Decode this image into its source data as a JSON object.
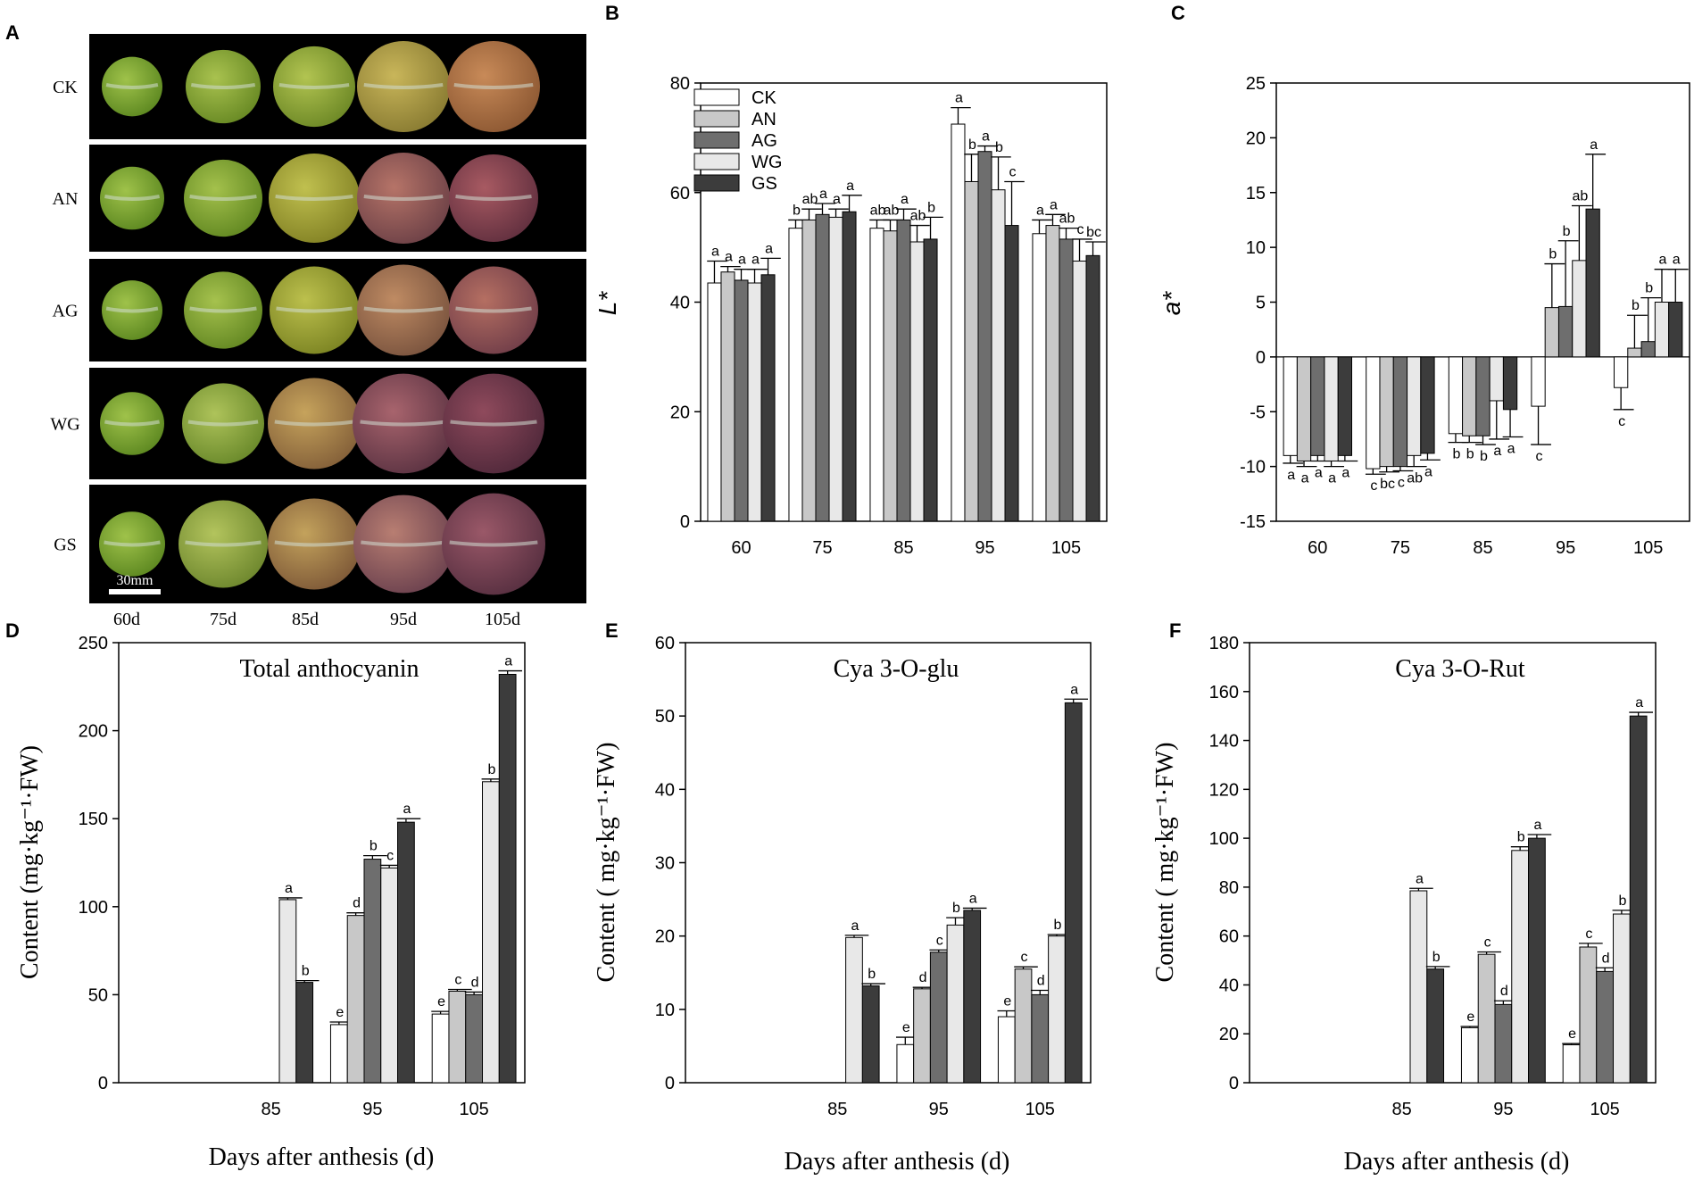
{
  "photo_panel": {
    "letter": "A",
    "row_labels": [
      "CK",
      "AN",
      "AG",
      "WG",
      "GS"
    ],
    "col_labels": [
      "60d",
      "75d",
      "85d",
      "95d",
      "105d"
    ],
    "scale_label": "30mm"
  },
  "chart_data": [
    {
      "id": "B",
      "type": "bar",
      "title": "",
      "xlabel": "",
      "ylabel": "L*",
      "ylim": [
        0,
        80
      ],
      "yticks": [
        0,
        20,
        40,
        60,
        80
      ],
      "categories": [
        "60",
        "75",
        "85",
        "95",
        "105"
      ],
      "legend": [
        "CK",
        "AN",
        "AG",
        "WG",
        "GS"
      ],
      "legend_position": "top-left",
      "series": [
        {
          "name": "CK",
          "color": "#ffffff",
          "values": [
            43.5,
            53.5,
            53.5,
            72.5,
            52.5
          ],
          "errors": [
            4,
            1.5,
            1.5,
            3,
            2.5
          ],
          "labels": [
            "a",
            "b",
            "ab",
            "a",
            "a"
          ]
        },
        {
          "name": "AN",
          "color": "#c8c8c8",
          "values": [
            45.5,
            55,
            53,
            62,
            54
          ],
          "errors": [
            1,
            2,
            2,
            5,
            2
          ],
          "labels": [
            "a",
            "ab",
            "ab",
            "b",
            "a"
          ]
        },
        {
          "name": "AG",
          "color": "#6e6e6e",
          "values": [
            44,
            56,
            55,
            67.5,
            51.5
          ],
          "errors": [
            2,
            2,
            2,
            1,
            2
          ],
          "labels": [
            "a",
            "a",
            "a",
            "a",
            "ab"
          ]
        },
        {
          "name": "WG",
          "color": "#e8e8e8",
          "values": [
            43.5,
            55.5,
            51,
            60.5,
            47.5
          ],
          "errors": [
            2.5,
            1.5,
            3,
            6,
            4
          ],
          "labels": [
            "a",
            "a",
            "ab",
            "b",
            "c"
          ]
        },
        {
          "name": "GS",
          "color": "#3c3c3c",
          "values": [
            45,
            56.5,
            51.5,
            54,
            48.5
          ],
          "errors": [
            3,
            3,
            4,
            8,
            2.5
          ],
          "labels": [
            "a",
            "a",
            "b",
            "c",
            "bc"
          ]
        }
      ]
    },
    {
      "id": "C",
      "type": "bar",
      "title": "",
      "xlabel": "",
      "ylabel": "a*",
      "ylim": [
        -15,
        25
      ],
      "yticks": [
        -15,
        -10,
        -5,
        0,
        5,
        10,
        15,
        20,
        25
      ],
      "categories": [
        "60",
        "75",
        "85",
        "95",
        "105"
      ],
      "series": [
        {
          "name": "CK",
          "color": "#ffffff",
          "values": [
            -9,
            -10.2,
            -7,
            -4.5,
            -2.8
          ],
          "errors": [
            0.7,
            0.5,
            0.8,
            3.5,
            2
          ],
          "labels": [
            "a",
            "c",
            "b",
            "c",
            "c"
          ]
        },
        {
          "name": "AN",
          "color": "#c8c8c8",
          "values": [
            -9.5,
            -10,
            -7.2,
            4.5,
            0.8
          ],
          "errors": [
            0.5,
            0.5,
            0.6,
            4,
            3
          ],
          "labels": [
            "a",
            "bc",
            "b",
            "b",
            "b"
          ]
        },
        {
          "name": "AG",
          "color": "#6e6e6e",
          "values": [
            -9,
            -10,
            -7.2,
            4.6,
            1.4
          ],
          "errors": [
            0.5,
            0.4,
            0.8,
            6,
            4
          ],
          "labels": [
            "a",
            "c",
            "b",
            "b",
            "b"
          ]
        },
        {
          "name": "WG",
          "color": "#e8e8e8",
          "values": [
            -9.5,
            -9,
            -4,
            8.8,
            5
          ],
          "errors": [
            0.5,
            1,
            3.5,
            5,
            3
          ],
          "labels": [
            "a",
            "ab",
            "a",
            "ab",
            "a"
          ]
        },
        {
          "name": "GS",
          "color": "#3c3c3c",
          "values": [
            -9,
            -8.8,
            -4.8,
            13.5,
            5
          ],
          "errors": [
            0.5,
            0.6,
            2.5,
            5,
            3
          ],
          "labels": [
            "a",
            "a",
            "a",
            "a",
            "a"
          ]
        }
      ]
    },
    {
      "id": "D",
      "type": "bar",
      "title": "Total anthocyanin",
      "xlabel": "Days after anthesis (d)",
      "ylabel": "Content (mg·kg⁻¹·FW)",
      "ylim": [
        0,
        250
      ],
      "yticks": [
        0,
        50,
        100,
        150,
        200,
        250
      ],
      "categories": [
        "85",
        "95",
        "105"
      ],
      "series": [
        {
          "name": "CK",
          "color": "#ffffff",
          "values": [
            null,
            33,
            39
          ],
          "errors": [
            0,
            1.5,
            1.5
          ],
          "labels": [
            "",
            "e",
            "e"
          ]
        },
        {
          "name": "AN",
          "color": "#c8c8c8",
          "values": [
            null,
            95,
            52
          ],
          "errors": [
            0,
            1.5,
            1
          ],
          "labels": [
            "",
            "d",
            "c"
          ]
        },
        {
          "name": "AG",
          "color": "#6e6e6e",
          "values": [
            null,
            127,
            50
          ],
          "errors": [
            0,
            2,
            1.5
          ],
          "labels": [
            "",
            "b",
            "d"
          ]
        },
        {
          "name": "WG",
          "color": "#e8e8e8",
          "values": [
            104,
            122,
            171
          ],
          "errors": [
            1,
            1.5,
            1.5
          ],
          "labels": [
            "a",
            "c",
            "b"
          ]
        },
        {
          "name": "GS",
          "color": "#3c3c3c",
          "values": [
            57,
            148,
            232
          ],
          "errors": [
            1,
            2,
            2
          ],
          "labels": [
            "b",
            "a",
            "a"
          ]
        }
      ]
    },
    {
      "id": "E",
      "type": "bar",
      "title": "Cya 3-O-glu",
      "xlabel": "Days after anthesis (d)",
      "ylabel": "Content ( mg·kg⁻¹·FW)",
      "ylim": [
        0,
        60
      ],
      "yticks": [
        0,
        10,
        20,
        30,
        40,
        50,
        60
      ],
      "categories": [
        "85",
        "95",
        "105"
      ],
      "series": [
        {
          "name": "CK",
          "color": "#ffffff",
          "values": [
            null,
            5.2,
            9
          ],
          "errors": [
            0,
            1,
            0.8
          ],
          "labels": [
            "",
            "e",
            "e"
          ]
        },
        {
          "name": "AN",
          "color": "#c8c8c8",
          "values": [
            null,
            12.8,
            15.5
          ],
          "errors": [
            0,
            0.2,
            0.3
          ],
          "labels": [
            "",
            "d",
            "c"
          ]
        },
        {
          "name": "AG",
          "color": "#6e6e6e",
          "values": [
            null,
            17.8,
            12
          ],
          "errors": [
            0,
            0.3,
            0.6
          ],
          "labels": [
            "",
            "c",
            "d"
          ]
        },
        {
          "name": "WG",
          "color": "#e8e8e8",
          "values": [
            19.8,
            21.5,
            20
          ],
          "errors": [
            0.3,
            1,
            0.2
          ],
          "labels": [
            "a",
            "b",
            "b"
          ]
        },
        {
          "name": "GS",
          "color": "#3c3c3c",
          "values": [
            13.2,
            23.5,
            51.8
          ],
          "errors": [
            0.3,
            0.3,
            0.5
          ],
          "labels": [
            "b",
            "a",
            "a"
          ]
        }
      ]
    },
    {
      "id": "F",
      "type": "bar",
      "title": "Cya 3-O-Rut",
      "xlabel": "Days after anthesis (d)",
      "ylabel": "Content  ( mg·kg⁻¹·FW)",
      "ylim": [
        0,
        180
      ],
      "yticks": [
        0,
        20,
        40,
        60,
        80,
        100,
        120,
        140,
        160,
        180
      ],
      "categories": [
        "85",
        "95",
        "105"
      ],
      "series": [
        {
          "name": "CK",
          "color": "#ffffff",
          "values": [
            null,
            22.5,
            15.5
          ],
          "errors": [
            0,
            0.5,
            0.5
          ],
          "labels": [
            "",
            "e",
            "e"
          ]
        },
        {
          "name": "AN",
          "color": "#c8c8c8",
          "values": [
            null,
            52.5,
            55.5
          ],
          "errors": [
            0,
            1,
            1.5
          ],
          "labels": [
            "",
            "c",
            "c"
          ]
        },
        {
          "name": "AG",
          "color": "#6e6e6e",
          "values": [
            null,
            32,
            45.5
          ],
          "errors": [
            0,
            1.5,
            1.5
          ],
          "labels": [
            "",
            "d",
            "d"
          ]
        },
        {
          "name": "WG",
          "color": "#e8e8e8",
          "values": [
            78.5,
            95,
            69
          ],
          "errors": [
            1,
            1.5,
            1.5
          ],
          "labels": [
            "a",
            "b",
            "b"
          ]
        },
        {
          "name": "GS",
          "color": "#3c3c3c",
          "values": [
            46.5,
            100,
            150
          ],
          "errors": [
            1,
            1.5,
            1.5
          ],
          "labels": [
            "b",
            "a",
            "a"
          ]
        }
      ]
    }
  ]
}
